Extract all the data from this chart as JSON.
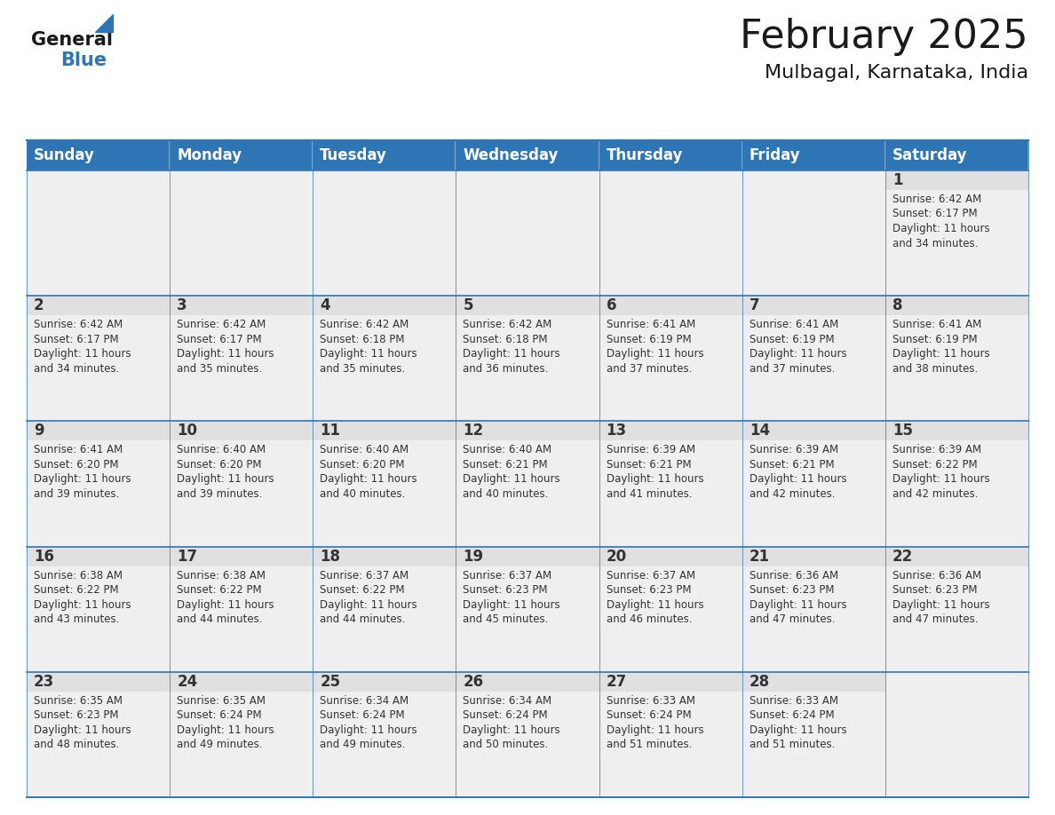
{
  "title": "February 2025",
  "subtitle": "Mulbagal, Karnataka, India",
  "header_bg": "#2E75B6",
  "header_text_color": "#FFFFFF",
  "cell_bg": "#EFEFEF",
  "day_header_bg": "#E0E0E0",
  "cell_border_color": "#2E75B6",
  "day_number_color": "#333333",
  "info_text_color": "#333333",
  "days_of_week": [
    "Sunday",
    "Monday",
    "Tuesday",
    "Wednesday",
    "Thursday",
    "Friday",
    "Saturday"
  ],
  "weeks": [
    [
      {
        "day": "",
        "sunrise": "",
        "sunset": "",
        "daylight": ""
      },
      {
        "day": "",
        "sunrise": "",
        "sunset": "",
        "daylight": ""
      },
      {
        "day": "",
        "sunrise": "",
        "sunset": "",
        "daylight": ""
      },
      {
        "day": "",
        "sunrise": "",
        "sunset": "",
        "daylight": ""
      },
      {
        "day": "",
        "sunrise": "",
        "sunset": "",
        "daylight": ""
      },
      {
        "day": "",
        "sunrise": "",
        "sunset": "",
        "daylight": ""
      },
      {
        "day": "1",
        "sunrise": "6:42 AM",
        "sunset": "6:17 PM",
        "daylight": "11 hours\nand 34 minutes."
      }
    ],
    [
      {
        "day": "2",
        "sunrise": "6:42 AM",
        "sunset": "6:17 PM",
        "daylight": "11 hours\nand 34 minutes."
      },
      {
        "day": "3",
        "sunrise": "6:42 AM",
        "sunset": "6:17 PM",
        "daylight": "11 hours\nand 35 minutes."
      },
      {
        "day": "4",
        "sunrise": "6:42 AM",
        "sunset": "6:18 PM",
        "daylight": "11 hours\nand 35 minutes."
      },
      {
        "day": "5",
        "sunrise": "6:42 AM",
        "sunset": "6:18 PM",
        "daylight": "11 hours\nand 36 minutes."
      },
      {
        "day": "6",
        "sunrise": "6:41 AM",
        "sunset": "6:19 PM",
        "daylight": "11 hours\nand 37 minutes."
      },
      {
        "day": "7",
        "sunrise": "6:41 AM",
        "sunset": "6:19 PM",
        "daylight": "11 hours\nand 37 minutes."
      },
      {
        "day": "8",
        "sunrise": "6:41 AM",
        "sunset": "6:19 PM",
        "daylight": "11 hours\nand 38 minutes."
      }
    ],
    [
      {
        "day": "9",
        "sunrise": "6:41 AM",
        "sunset": "6:20 PM",
        "daylight": "11 hours\nand 39 minutes."
      },
      {
        "day": "10",
        "sunrise": "6:40 AM",
        "sunset": "6:20 PM",
        "daylight": "11 hours\nand 39 minutes."
      },
      {
        "day": "11",
        "sunrise": "6:40 AM",
        "sunset": "6:20 PM",
        "daylight": "11 hours\nand 40 minutes."
      },
      {
        "day": "12",
        "sunrise": "6:40 AM",
        "sunset": "6:21 PM",
        "daylight": "11 hours\nand 40 minutes."
      },
      {
        "day": "13",
        "sunrise": "6:39 AM",
        "sunset": "6:21 PM",
        "daylight": "11 hours\nand 41 minutes."
      },
      {
        "day": "14",
        "sunrise": "6:39 AM",
        "sunset": "6:21 PM",
        "daylight": "11 hours\nand 42 minutes."
      },
      {
        "day": "15",
        "sunrise": "6:39 AM",
        "sunset": "6:22 PM",
        "daylight": "11 hours\nand 42 minutes."
      }
    ],
    [
      {
        "day": "16",
        "sunrise": "6:38 AM",
        "sunset": "6:22 PM",
        "daylight": "11 hours\nand 43 minutes."
      },
      {
        "day": "17",
        "sunrise": "6:38 AM",
        "sunset": "6:22 PM",
        "daylight": "11 hours\nand 44 minutes."
      },
      {
        "day": "18",
        "sunrise": "6:37 AM",
        "sunset": "6:22 PM",
        "daylight": "11 hours\nand 44 minutes."
      },
      {
        "day": "19",
        "sunrise": "6:37 AM",
        "sunset": "6:23 PM",
        "daylight": "11 hours\nand 45 minutes."
      },
      {
        "day": "20",
        "sunrise": "6:37 AM",
        "sunset": "6:23 PM",
        "daylight": "11 hours\nand 46 minutes."
      },
      {
        "day": "21",
        "sunrise": "6:36 AM",
        "sunset": "6:23 PM",
        "daylight": "11 hours\nand 47 minutes."
      },
      {
        "day": "22",
        "sunrise": "6:36 AM",
        "sunset": "6:23 PM",
        "daylight": "11 hours\nand 47 minutes."
      }
    ],
    [
      {
        "day": "23",
        "sunrise": "6:35 AM",
        "sunset": "6:23 PM",
        "daylight": "11 hours\nand 48 minutes."
      },
      {
        "day": "24",
        "sunrise": "6:35 AM",
        "sunset": "6:24 PM",
        "daylight": "11 hours\nand 49 minutes."
      },
      {
        "day": "25",
        "sunrise": "6:34 AM",
        "sunset": "6:24 PM",
        "daylight": "11 hours\nand 49 minutes."
      },
      {
        "day": "26",
        "sunrise": "6:34 AM",
        "sunset": "6:24 PM",
        "daylight": "11 hours\nand 50 minutes."
      },
      {
        "day": "27",
        "sunrise": "6:33 AM",
        "sunset": "6:24 PM",
        "daylight": "11 hours\nand 51 minutes."
      },
      {
        "day": "28",
        "sunrise": "6:33 AM",
        "sunset": "6:24 PM",
        "daylight": "11 hours\nand 51 minutes."
      },
      {
        "day": "",
        "sunrise": "",
        "sunset": "",
        "daylight": ""
      }
    ]
  ],
  "logo_general_color": "#1a1a1a",
  "logo_blue_color": "#2E75B6",
  "title_fontsize": 32,
  "subtitle_fontsize": 16,
  "header_fontsize": 12,
  "day_number_fontsize": 12,
  "info_fontsize": 8.5
}
